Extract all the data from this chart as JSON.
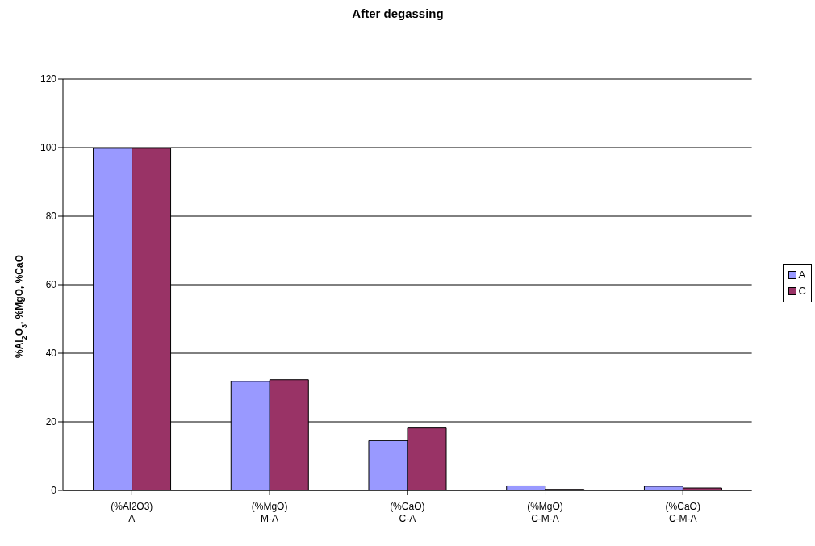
{
  "chart_data": {
    "type": "bar",
    "title": "After degassing",
    "ylabel": "%Al$_{2}$O$_{3}$, %MgO, %CaO",
    "categories": [
      "(%Al2O3)\nA",
      "(%MgO)\nM-A",
      "(%CaO)\nC-A",
      "(%MgO)\nC-M-A",
      "(%CaO)\nC-M-A"
    ],
    "series": [
      {
        "name": "A",
        "color": "#9999ff",
        "values": [
          99.8,
          31.8,
          14.5,
          1.3,
          1.2
        ]
      },
      {
        "name": "C",
        "color": "#993366",
        "values": [
          99.8,
          32.3,
          18.2,
          0.3,
          0.7
        ]
      }
    ],
    "ylim": [
      0,
      120
    ],
    "yticks": [
      0,
      20,
      40,
      60,
      80,
      100,
      120
    ],
    "grid": "y",
    "legend": "right"
  }
}
